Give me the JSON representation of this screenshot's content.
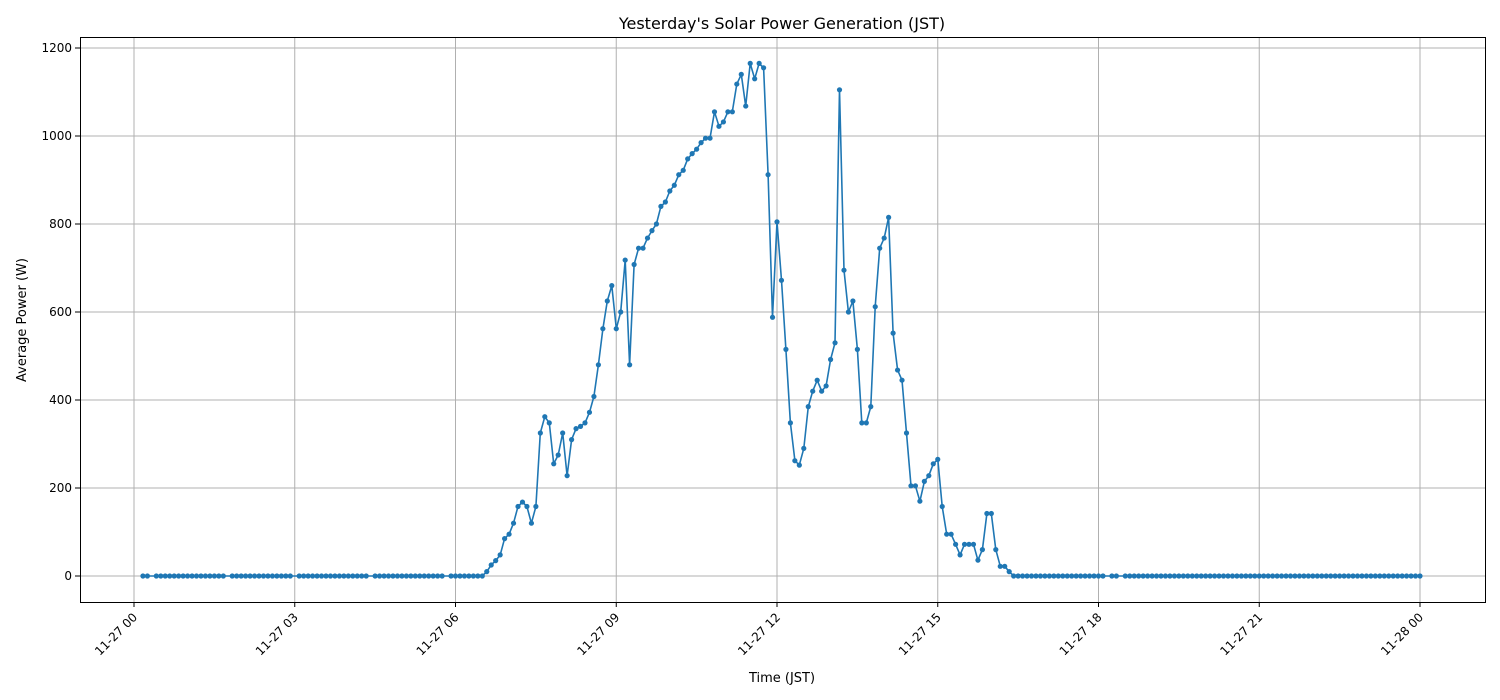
{
  "chart_data": {
    "type": "line",
    "title": "Yesterday's Solar Power Generation (JST)",
    "xlabel": "Time (JST)",
    "ylabel": "Average Power (W)",
    "x_tick_labels": [
      "11-27 00",
      "11-27 03",
      "11-27 06",
      "11-27 09",
      "11-27 12",
      "11-27 15",
      "11-27 18",
      "11-27 21",
      "11-28 00"
    ],
    "y_ticks": [
      0,
      200,
      400,
      600,
      800,
      1000,
      1200
    ],
    "xlim": [
      "11-26 23:00",
      "11-28 00:40"
    ],
    "ylim": [
      -60,
      1225
    ],
    "grid": true,
    "color": "#1f77b4",
    "series": [
      {
        "x": [
          "00:10",
          "00:15",
          "00:25",
          "00:30",
          "00:35",
          "00:40",
          "00:45",
          "00:50",
          "00:55",
          "01:00",
          "01:05",
          "01:10",
          "01:15",
          "01:20",
          "01:25",
          "01:30",
          "01:35",
          "01:40",
          "01:50",
          "01:55",
          "02:00",
          "02:05",
          "02:10",
          "02:15",
          "02:20",
          "02:25",
          "02:30",
          "02:35",
          "02:40",
          "02:45",
          "02:50",
          "02:55",
          "03:05",
          "03:10",
          "03:15",
          "03:20",
          "03:25",
          "03:30",
          "03:35",
          "03:40",
          "03:45",
          "03:50",
          "03:55",
          "04:00",
          "04:05",
          "04:10",
          "04:15",
          "04:20",
          "04:30",
          "04:35",
          "04:40",
          "04:45",
          "04:50",
          "04:55",
          "05:00",
          "05:05",
          "05:10",
          "05:15",
          "05:20",
          "05:25",
          "05:30",
          "05:35",
          "05:40",
          "05:45",
          "05:55",
          "06:00",
          "06:05",
          "06:10",
          "06:15",
          "06:20",
          "06:25",
          "06:30",
          "06:35",
          "06:40",
          "06:45",
          "06:50",
          "06:55",
          "07:00",
          "07:05",
          "07:10",
          "07:15",
          "07:20",
          "07:25",
          "07:30",
          "07:35",
          "07:40",
          "07:45",
          "07:50",
          "07:55",
          "08:00",
          "08:05",
          "08:10",
          "08:15",
          "08:20",
          "08:25",
          "08:30",
          "08:35",
          "08:40",
          "08:45",
          "08:50",
          "08:55",
          "09:00",
          "09:05",
          "09:10",
          "09:15",
          "09:20",
          "09:25",
          "09:30",
          "09:35",
          "09:40",
          "09:45",
          "09:50",
          "09:55",
          "10:00",
          "10:05",
          "10:10",
          "10:15",
          "10:20",
          "10:25",
          "10:30",
          "10:35",
          "10:40",
          "10:45",
          "10:50",
          "10:55",
          "11:00",
          "11:05",
          "11:10",
          "11:15",
          "11:20",
          "11:25",
          "11:30",
          "11:35",
          "11:40",
          "11:45",
          "11:50",
          "11:55",
          "12:00",
          "12:05",
          "12:10",
          "12:15",
          "12:20",
          "12:25",
          "12:30",
          "12:35",
          "12:40",
          "12:45",
          "12:50",
          "12:55",
          "13:00",
          "13:05",
          "13:10",
          "13:15",
          "13:20",
          "13:25",
          "13:30",
          "13:35",
          "13:40",
          "13:45",
          "13:50",
          "13:55",
          "14:00",
          "14:05",
          "14:10",
          "14:15",
          "14:20",
          "14:25",
          "14:30",
          "14:35",
          "14:40",
          "14:45",
          "14:50",
          "14:55",
          "15:00",
          "15:05",
          "15:10",
          "15:15",
          "15:20",
          "15:25",
          "15:30",
          "15:35",
          "15:40",
          "15:45",
          "15:50",
          "15:55",
          "16:00",
          "16:05",
          "16:10",
          "16:15",
          "16:20",
          "16:25",
          "16:30",
          "16:35",
          "16:40",
          "16:45",
          "16:50",
          "16:55",
          "17:00",
          "17:05",
          "17:10",
          "17:15",
          "17:20",
          "17:25",
          "17:30",
          "17:35",
          "17:40",
          "17:45",
          "17:50",
          "17:55",
          "18:00",
          "18:05",
          "18:15",
          "18:20",
          "18:30",
          "18:35",
          "18:40",
          "18:45",
          "18:50",
          "18:55",
          "19:00",
          "19:05",
          "19:10",
          "19:15",
          "19:20",
          "19:25",
          "19:30",
          "19:35",
          "19:40",
          "19:45",
          "19:50",
          "19:55",
          "20:00",
          "20:05",
          "20:10",
          "20:15",
          "20:20",
          "20:25",
          "20:30",
          "20:35",
          "20:40",
          "20:45",
          "20:50",
          "20:55",
          "21:00",
          "21:05",
          "21:10",
          "21:15",
          "21:20",
          "21:25",
          "21:30",
          "21:35",
          "21:40",
          "21:45",
          "21:50",
          "21:55",
          "22:00",
          "22:05",
          "22:10",
          "22:15",
          "22:20",
          "22:25",
          "22:30",
          "22:35",
          "22:40",
          "22:45",
          "22:50",
          "22:55",
          "23:00",
          "23:05",
          "23:10",
          "23:15",
          "23:20",
          "23:25",
          "23:30",
          "23:35",
          "23:40",
          "23:45",
          "23:50",
          "23:55",
          "24:00"
        ],
        "values": [
          0,
          0,
          0,
          0,
          0,
          0,
          0,
          0,
          0,
          0,
          0,
          0,
          0,
          0,
          0,
          0,
          0,
          0,
          0,
          0,
          0,
          0,
          0,
          0,
          0,
          0,
          0,
          0,
          0,
          0,
          0,
          0,
          0,
          0,
          0,
          0,
          0,
          0,
          0,
          0,
          0,
          0,
          0,
          0,
          0,
          0,
          0,
          0,
          0,
          0,
          0,
          0,
          0,
          0,
          0,
          0,
          0,
          0,
          0,
          0,
          0,
          0,
          0,
          0,
          0,
          0,
          0,
          0,
          0,
          0,
          0,
          0,
          10,
          25,
          35,
          48,
          85,
          95,
          120,
          158,
          168,
          158,
          120,
          158,
          325,
          362,
          348,
          255,
          275,
          325,
          228,
          310,
          335,
          340,
          348,
          372,
          408,
          480,
          562,
          625,
          660,
          562,
          600,
          718,
          480,
          708,
          745,
          745,
          768,
          785,
          800,
          840,
          850,
          875,
          888,
          912,
          922,
          948,
          960,
          970,
          985,
          995,
          995,
          1055,
          1022,
          1032,
          1055,
          1055,
          1118,
          1140,
          1068,
          1165,
          1130,
          1165,
          1155,
          912,
          588,
          805,
          672,
          515,
          348,
          262,
          252,
          290,
          385,
          420,
          445,
          420,
          432,
          492,
          530,
          1105,
          695,
          600,
          625,
          515,
          348,
          348,
          385,
          612,
          745,
          768,
          815,
          552,
          468,
          445,
          325,
          205,
          205,
          170,
          215,
          228,
          255,
          265,
          158,
          95,
          95,
          72,
          48,
          72,
          72,
          72,
          36,
          60,
          142,
          142,
          60,
          22,
          22,
          10,
          0,
          0,
          0,
          0,
          0,
          0,
          0,
          0,
          0,
          0,
          0,
          0,
          0,
          0,
          0,
          0,
          0,
          0,
          0,
          0,
          0,
          0,
          0,
          0,
          0,
          0,
          0,
          0,
          0,
          0,
          0,
          0,
          0,
          0,
          0,
          0,
          0,
          0,
          0,
          0,
          0,
          0,
          0,
          0,
          0,
          0,
          0,
          0,
          0,
          0,
          0,
          0,
          0,
          0,
          0,
          0,
          0,
          0,
          0,
          0,
          0,
          0,
          0,
          0,
          0,
          0,
          0,
          0,
          0,
          0,
          0,
          0,
          0,
          0,
          0,
          0,
          0,
          0,
          0,
          0,
          0,
          0,
          0,
          0,
          0,
          0,
          0,
          0,
          0,
          0
        ]
      }
    ]
  }
}
